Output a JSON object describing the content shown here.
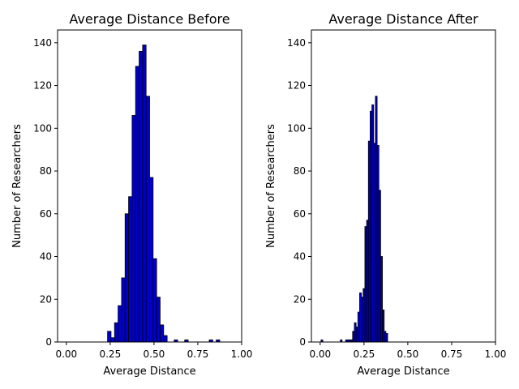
{
  "chart_data": [
    {
      "type": "bar",
      "title": "Average Distance Before",
      "xlabel": "Average Distance",
      "ylabel": "Number of Researchers",
      "xlim": [
        -0.05,
        1.0
      ],
      "ylim": [
        0,
        146
      ],
      "xticks": [
        "0.00",
        "0.25",
        "0.50",
        "0.75",
        "1.00"
      ],
      "yticks": [
        "0",
        "20",
        "40",
        "60",
        "80",
        "100",
        "120",
        "140"
      ],
      "grid": false,
      "bar_color": "#0000cc",
      "edge_color": "#000000",
      "bin_width": 0.02,
      "bins": [
        {
          "x": 0.245,
          "count": 5
        },
        {
          "x": 0.265,
          "count": 2
        },
        {
          "x": 0.285,
          "count": 9
        },
        {
          "x": 0.305,
          "count": 17
        },
        {
          "x": 0.325,
          "count": 30
        },
        {
          "x": 0.345,
          "count": 60
        },
        {
          "x": 0.365,
          "count": 68
        },
        {
          "x": 0.385,
          "count": 106
        },
        {
          "x": 0.405,
          "count": 129
        },
        {
          "x": 0.425,
          "count": 136
        },
        {
          "x": 0.445,
          "count": 139
        },
        {
          "x": 0.465,
          "count": 115
        },
        {
          "x": 0.485,
          "count": 77
        },
        {
          "x": 0.505,
          "count": 39
        },
        {
          "x": 0.525,
          "count": 21
        },
        {
          "x": 0.545,
          "count": 8
        },
        {
          "x": 0.565,
          "count": 3
        },
        {
          "x": 0.605,
          "count": 0
        },
        {
          "x": 0.625,
          "count": 1
        },
        {
          "x": 0.645,
          "count": 0
        },
        {
          "x": 0.685,
          "count": 1
        },
        {
          "x": 0.705,
          "count": 0
        },
        {
          "x": 0.725,
          "count": 0
        },
        {
          "x": 0.745,
          "count": 0
        },
        {
          "x": 0.765,
          "count": 0
        },
        {
          "x": 0.785,
          "count": 0
        },
        {
          "x": 0.805,
          "count": 0
        },
        {
          "x": 0.825,
          "count": 1
        },
        {
          "x": 0.845,
          "count": 0
        },
        {
          "x": 0.865,
          "count": 1
        }
      ]
    },
    {
      "type": "bar",
      "title": "Average Distance After",
      "xlabel": "Average Distance",
      "ylabel": "Number of Researchers",
      "xlim": [
        -0.05,
        1.0
      ],
      "ylim": [
        0,
        146
      ],
      "xticks": [
        "0.00",
        "0.25",
        "0.50",
        "0.75",
        "1.00"
      ],
      "yticks": [
        "0",
        "20",
        "40",
        "60",
        "80",
        "100",
        "120",
        "140"
      ],
      "grid": false,
      "bar_color": "#0000cc",
      "edge_color": "#000000",
      "bin_width": 0.01,
      "bins": [
        {
          "x": 0.01,
          "count": 1
        },
        {
          "x": 0.12,
          "count": 1
        },
        {
          "x": 0.15,
          "count": 1
        },
        {
          "x": 0.16,
          "count": 1
        },
        {
          "x": 0.17,
          "count": 1
        },
        {
          "x": 0.18,
          "count": 1
        },
        {
          "x": 0.19,
          "count": 5
        },
        {
          "x": 0.2,
          "count": 9
        },
        {
          "x": 0.21,
          "count": 7
        },
        {
          "x": 0.22,
          "count": 14
        },
        {
          "x": 0.23,
          "count": 23
        },
        {
          "x": 0.24,
          "count": 21
        },
        {
          "x": 0.25,
          "count": 25
        },
        {
          "x": 0.26,
          "count": 54
        },
        {
          "x": 0.27,
          "count": 57
        },
        {
          "x": 0.28,
          "count": 94
        },
        {
          "x": 0.29,
          "count": 108
        },
        {
          "x": 0.3,
          "count": 111
        },
        {
          "x": 0.31,
          "count": 93
        },
        {
          "x": 0.32,
          "count": 115
        },
        {
          "x": 0.33,
          "count": 92
        },
        {
          "x": 0.34,
          "count": 71
        },
        {
          "x": 0.35,
          "count": 40
        },
        {
          "x": 0.36,
          "count": 15
        },
        {
          "x": 0.37,
          "count": 5
        },
        {
          "x": 0.38,
          "count": 4
        }
      ]
    }
  ]
}
